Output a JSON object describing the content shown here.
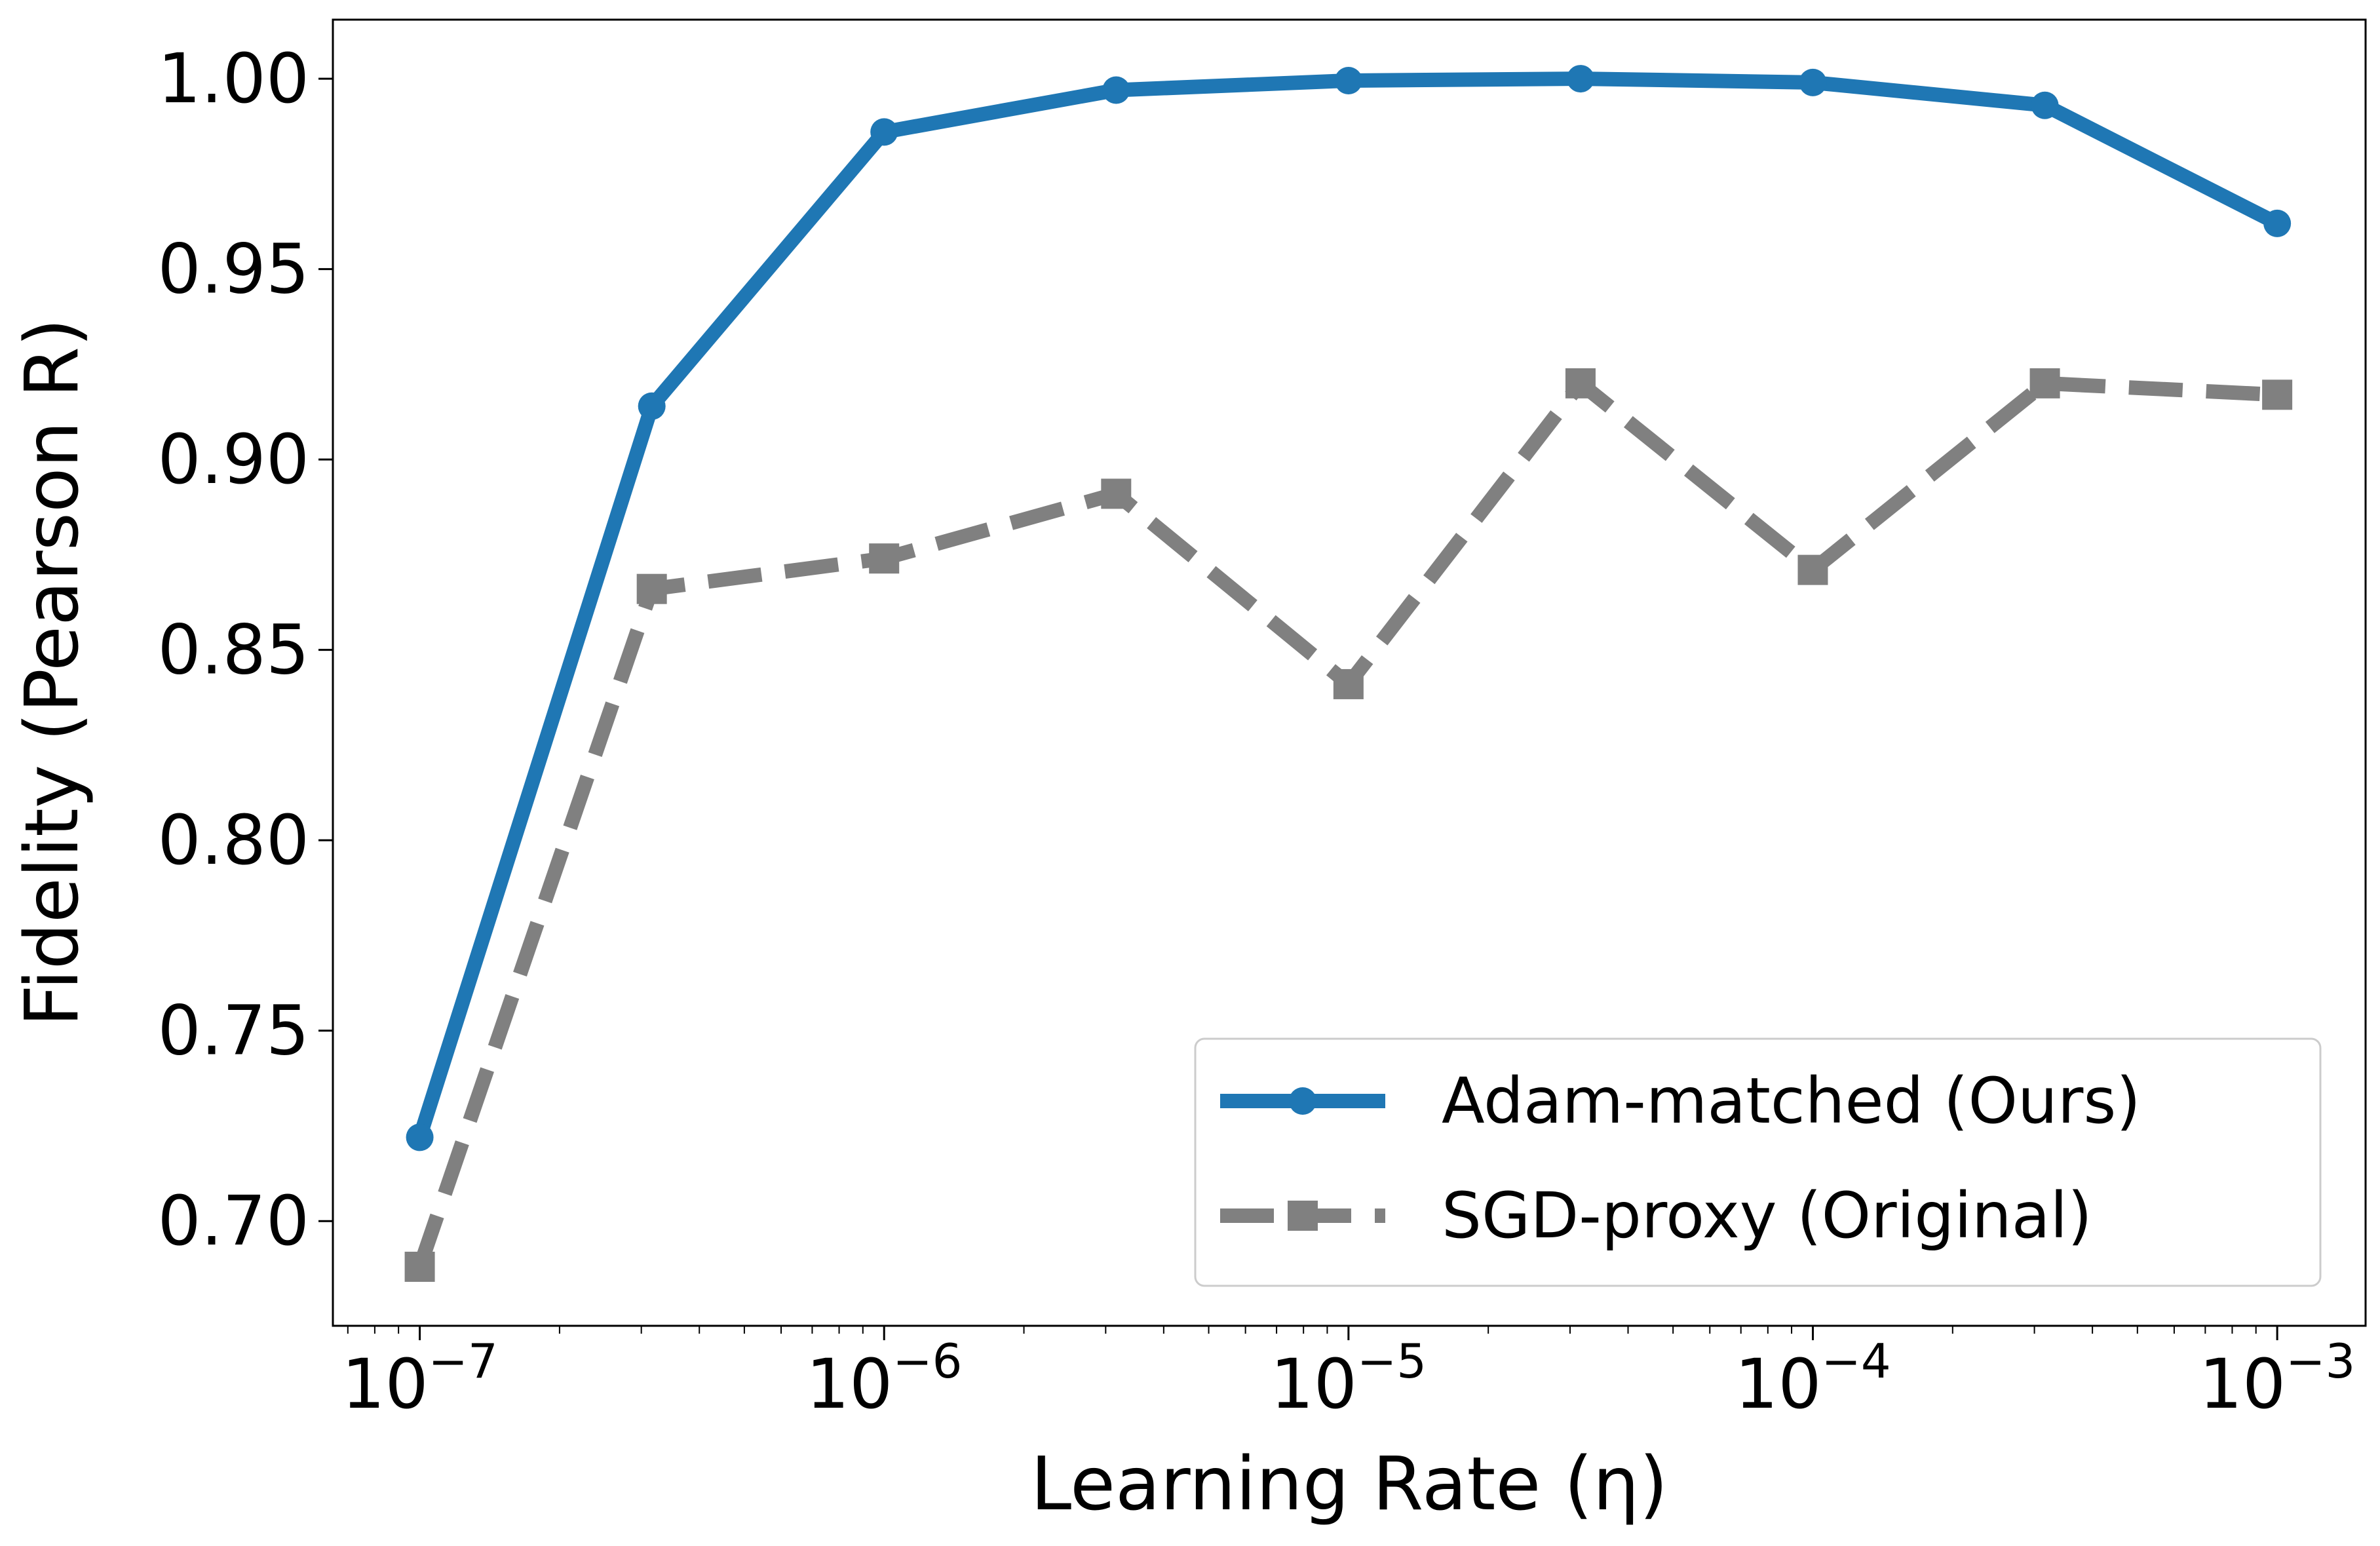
{
  "chart_data": {
    "type": "line",
    "title": "",
    "xlabel": "Learning Rate (η)",
    "ylabel": "Fidelity (Pearson R)",
    "xscale": "log",
    "xlim": [
      6.5e-08,
      0.00155
    ],
    "ylim": [
      0.6725,
      1.0155
    ],
    "x": [
      1e-07,
      3.16e-07,
      1e-06,
      3.16e-06,
      1e-05,
      3.16e-05,
      0.0001,
      0.000316,
      0.001
    ],
    "x_ticks": [
      {
        "value": 1e-07,
        "base": "10",
        "exp": "−7"
      },
      {
        "value": 1e-06,
        "base": "10",
        "exp": "−6"
      },
      {
        "value": 1e-05,
        "base": "10",
        "exp": "−5"
      },
      {
        "value": 0.0001,
        "base": "10",
        "exp": "−4"
      },
      {
        "value": 0.001,
        "base": "10",
        "exp": "−3"
      }
    ],
    "y_ticks": [
      "0.70",
      "0.75",
      "0.80",
      "0.85",
      "0.90",
      "0.95",
      "1.00"
    ],
    "grid": false,
    "legend_position": "lower-right",
    "series": [
      {
        "name": "Adam-matched (Ours)",
        "color": "#1f77b4",
        "line_style": "solid",
        "marker": "circle",
        "values": [
          0.722,
          0.914,
          0.986,
          0.997,
          0.9995,
          1.0,
          0.999,
          0.993,
          0.962
        ]
      },
      {
        "name": "SGD-proxy (Original)",
        "color": "#808080",
        "line_style": "dashed",
        "marker": "square",
        "values": [
          0.688,
          0.866,
          0.874,
          0.891,
          0.841,
          0.92,
          0.871,
          0.92,
          0.917
        ]
      }
    ]
  }
}
